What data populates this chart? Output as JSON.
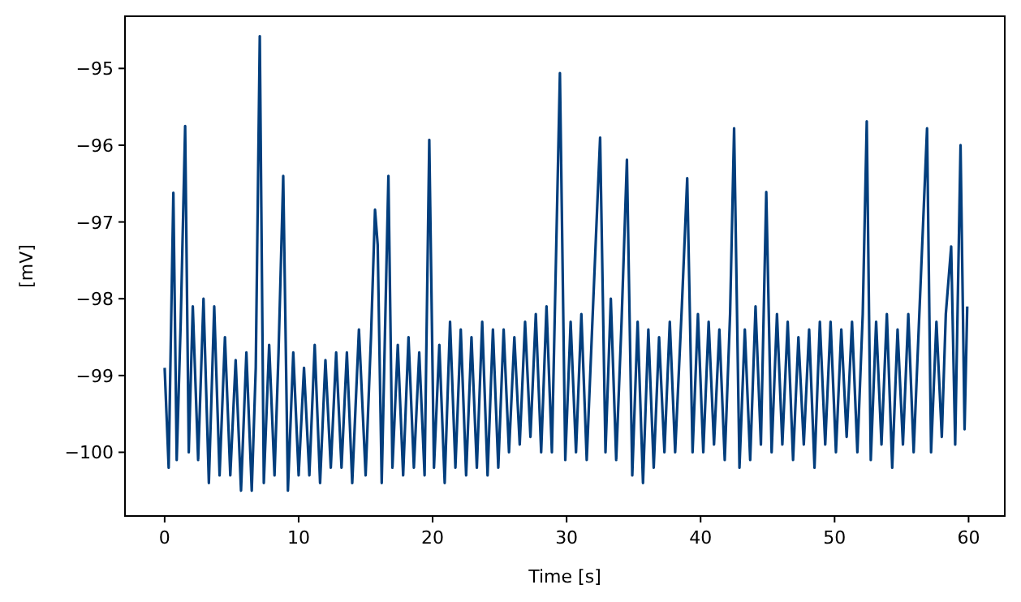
{
  "chart_data": {
    "type": "line",
    "xlabel": "Time [s]",
    "ylabel": "[mV]",
    "xlim": [
      -2.96,
      62.7
    ],
    "ylim": [
      -100.83,
      -94.32
    ],
    "xticks": [
      0,
      10,
      20,
      30,
      40,
      50,
      60
    ],
    "yticks": [
      {
        "value": -100,
        "label": "−100"
      },
      {
        "value": -99,
        "label": "−99"
      },
      {
        "value": -98,
        "label": "−98"
      },
      {
        "value": -97,
        "label": "−97"
      },
      {
        "value": -96,
        "label": "−96"
      },
      {
        "value": -95,
        "label": "−95"
      }
    ],
    "series": [
      {
        "color": "#023e7d",
        "x": [
          0.0,
          0.3,
          0.65,
          0.9,
          1.2,
          1.53,
          1.8,
          2.1,
          2.5,
          2.9,
          3.3,
          3.7,
          4.1,
          4.5,
          4.9,
          5.3,
          5.7,
          6.1,
          6.5,
          6.8,
          7.1,
          7.4,
          7.8,
          8.2,
          8.5,
          8.85,
          9.2,
          9.6,
          10.0,
          10.4,
          10.8,
          11.2,
          11.6,
          12.0,
          12.4,
          12.8,
          13.2,
          13.6,
          14.0,
          14.5,
          15.0,
          15.4,
          15.7,
          15.9,
          16.2,
          16.7,
          17.0,
          17.4,
          17.8,
          18.2,
          18.6,
          19.0,
          19.4,
          19.75,
          20.1,
          20.5,
          20.9,
          21.3,
          21.7,
          22.1,
          22.5,
          22.9,
          23.3,
          23.7,
          24.1,
          24.5,
          24.9,
          25.3,
          25.7,
          26.1,
          26.5,
          26.9,
          27.3,
          27.7,
          28.1,
          28.5,
          28.9,
          29.5,
          29.9,
          30.3,
          30.7,
          31.1,
          31.5,
          31.9,
          32.5,
          32.9,
          33.3,
          33.7,
          34.1,
          34.5,
          34.9,
          35.3,
          35.7,
          36.1,
          36.5,
          36.9,
          37.3,
          37.7,
          38.1,
          38.6,
          39.0,
          39.4,
          39.8,
          40.2,
          40.6,
          41.0,
          41.4,
          41.8,
          42.2,
          42.5,
          42.9,
          43.3,
          43.7,
          44.1,
          44.5,
          44.9,
          45.3,
          45.7,
          46.1,
          46.5,
          46.9,
          47.3,
          47.7,
          48.1,
          48.5,
          48.9,
          49.3,
          49.7,
          50.1,
          50.5,
          50.9,
          51.3,
          51.7,
          52.1,
          52.4,
          52.7,
          53.1,
          53.5,
          53.9,
          54.3,
          54.7,
          55.1,
          55.5,
          55.9,
          56.3,
          56.9,
          57.2,
          57.6,
          58.0,
          58.3,
          58.7,
          59.0,
          59.4,
          59.7,
          59.9
        ],
        "values": [
          -98.9,
          -100.2,
          -96.62,
          -100.1,
          -98.3,
          -95.75,
          -100.0,
          -98.1,
          -100.1,
          -98.0,
          -100.4,
          -98.1,
          -100.3,
          -98.5,
          -100.3,
          -98.8,
          -100.5,
          -98.7,
          -100.5,
          -98.9,
          -94.58,
          -100.4,
          -98.6,
          -100.3,
          -98.7,
          -96.4,
          -100.5,
          -98.7,
          -100.3,
          -98.9,
          -100.3,
          -98.6,
          -100.4,
          -98.8,
          -100.2,
          -98.7,
          -100.2,
          -98.7,
          -100.4,
          -98.4,
          -100.3,
          -98.5,
          -96.84,
          -97.3,
          -100.4,
          -96.4,
          -100.2,
          -98.6,
          -100.3,
          -98.5,
          -100.2,
          -98.7,
          -100.3,
          -95.93,
          -100.2,
          -98.6,
          -100.4,
          -98.3,
          -100.2,
          -98.4,
          -100.3,
          -98.5,
          -100.2,
          -98.3,
          -100.3,
          -98.4,
          -100.2,
          -98.4,
          -100.0,
          -98.5,
          -99.9,
          -98.3,
          -99.8,
          -98.2,
          -100.0,
          -98.1,
          -100.0,
          -95.06,
          -100.1,
          -98.3,
          -100.0,
          -98.2,
          -100.1,
          -98.4,
          -95.9,
          -100.0,
          -98.0,
          -100.1,
          -98.3,
          -96.19,
          -100.3,
          -98.3,
          -100.4,
          -98.4,
          -100.2,
          -98.5,
          -100.0,
          -98.3,
          -100.0,
          -98.1,
          -96.43,
          -100.0,
          -98.2,
          -100.0,
          -98.3,
          -99.9,
          -98.4,
          -100.1,
          -98.2,
          -95.78,
          -100.2,
          -98.4,
          -100.1,
          -98.1,
          -99.9,
          -96.61,
          -100.0,
          -98.2,
          -99.9,
          -98.3,
          -100.1,
          -98.5,
          -99.9,
          -98.4,
          -100.2,
          -98.3,
          -99.9,
          -98.3,
          -100.0,
          -98.4,
          -99.8,
          -98.3,
          -100.0,
          -98.2,
          -95.69,
          -100.1,
          -98.3,
          -99.9,
          -98.2,
          -100.2,
          -98.4,
          -99.9,
          -98.2,
          -100.0,
          -98.3,
          -95.78,
          -100.0,
          -98.3,
          -99.8,
          -98.2,
          -97.32,
          -99.9,
          -96.0,
          -99.7,
          -98.1
        ]
      }
    ]
  }
}
